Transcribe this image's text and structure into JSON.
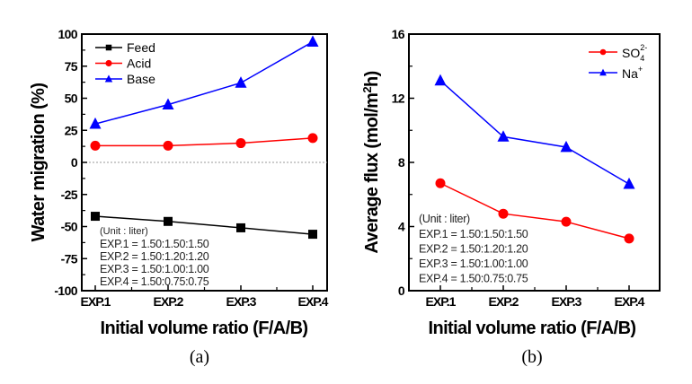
{
  "chart_data": [
    {
      "id": "a",
      "type": "line",
      "caption": "(a)",
      "xlabel": "Initial volume ratio (F/A/B)",
      "ylabel": "Water migration (%)",
      "categories": [
        "EXP.1",
        "EXP.2",
        "EXP.3",
        "EXP.4"
      ],
      "ylim": [
        -100,
        100
      ],
      "yticks": [
        -100,
        -75,
        -50,
        -25,
        0,
        25,
        50,
        75,
        100
      ],
      "reference_line": {
        "y": 0,
        "style": "dotted",
        "color": "#999999"
      },
      "legend_position": "top-left",
      "series": [
        {
          "name": "Feed",
          "marker": "square",
          "color": "#000000",
          "values": [
            -42,
            -46,
            -51,
            -56
          ]
        },
        {
          "name": "Acid",
          "marker": "circle",
          "color": "#ff0000",
          "values": [
            13,
            13,
            15,
            19
          ]
        },
        {
          "name": "Base",
          "marker": "triangle",
          "color": "#0000ff",
          "values": [
            30,
            45,
            62,
            94
          ]
        }
      ],
      "annotation": {
        "header": "(Unit : liter)",
        "lines": [
          "EXP.1 = 1.50:1.50:1.50",
          "EXP.2 = 1.50:1.20:1.20",
          "EXP.3 = 1.50:1.00:1.00",
          "EXP.4 = 1.50:0.75:0.75"
        ]
      }
    },
    {
      "id": "b",
      "type": "line",
      "caption": "(b)",
      "xlabel": "Initial volume ratio (F/A/B)",
      "ylabel_main": "Average flux (mol/m",
      "ylabel_sup": "2",
      "ylabel_end": "h)",
      "categories": [
        "EXP.1",
        "EXP.2",
        "EXP.3",
        "EXP.4"
      ],
      "ylim": [
        0,
        16
      ],
      "yticks": [
        0,
        4,
        8,
        12,
        16
      ],
      "legend_position": "top-right",
      "series": [
        {
          "name": "SO4 2-",
          "label_main": "SO",
          "label_sub": "4",
          "label_sup": "2-",
          "marker": "circle",
          "color": "#ff0000",
          "values": [
            6.7,
            4.8,
            4.3,
            3.25
          ]
        },
        {
          "name": "Na+",
          "label_main": "Na",
          "label_sub": "",
          "label_sup": "+",
          "marker": "triangle",
          "color": "#0000ff",
          "values": [
            13.1,
            9.6,
            8.95,
            6.65
          ]
        }
      ],
      "annotation": {
        "header": "(Unit : liter)",
        "lines": [
          "EXP.1 = 1.50:1.50:1.50",
          "EXP.2 = 1.50:1.20:1.20",
          "EXP.3 = 1.50:1.00:1.00",
          "EXP.4 = 1.50:0.75:0.75"
        ]
      }
    }
  ]
}
